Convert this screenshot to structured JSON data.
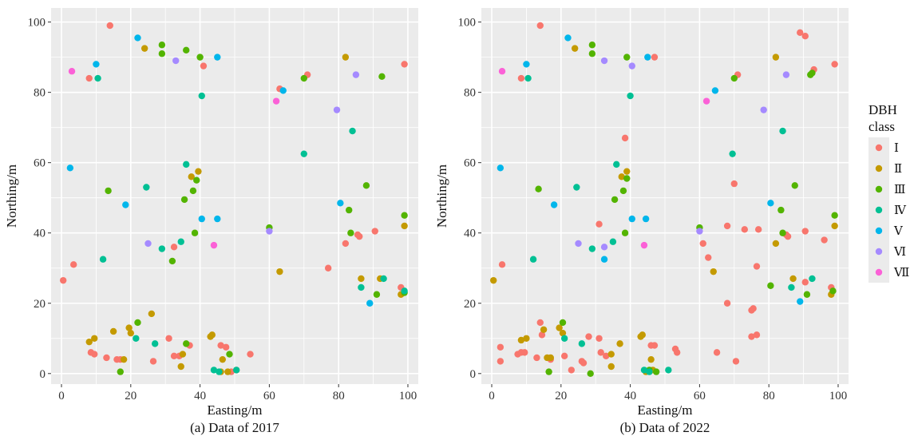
{
  "legend": {
    "title_line1": "DBH",
    "title_line2": "class",
    "placement": "right",
    "classes": [
      {
        "label": "Ⅰ",
        "color": "#F8766D"
      },
      {
        "label": "Ⅱ",
        "color": "#C49A00"
      },
      {
        "label": "Ⅲ",
        "color": "#53B400"
      },
      {
        "label": "Ⅳ",
        "color": "#00C094"
      },
      {
        "label": "Ⅴ",
        "color": "#00B6EB"
      },
      {
        "label": "Ⅵ",
        "color": "#A58AFF"
      },
      {
        "label": "Ⅶ",
        "color": "#FB61D7"
      }
    ]
  },
  "chart_data": [
    {
      "type": "scatter",
      "caption": "(a) Data of 2017",
      "xlabel": "Easting/m",
      "ylabel": "Northing/m",
      "xlim": [
        -3,
        103
      ],
      "ylim": [
        -3,
        104
      ],
      "xticks": [
        0,
        20,
        40,
        60,
        80,
        100
      ],
      "yticks": [
        0,
        20,
        40,
        60,
        80,
        100
      ],
      "grid": true,
      "series": [
        {
          "name": "Ⅰ",
          "points": [
            [
              14,
              99
            ],
            [
              8,
              84
            ],
            [
              41,
              87.5
            ],
            [
              71,
              85
            ],
            [
              99,
              88
            ],
            [
              0.5,
              26.5
            ],
            [
              3.5,
              31
            ],
            [
              8.5,
              6
            ],
            [
              9.5,
              5.5
            ],
            [
              13,
              4.5
            ],
            [
              16,
              4
            ],
            [
              17,
              4
            ],
            [
              26.5,
              3.5
            ],
            [
              31,
              10
            ],
            [
              32.5,
              5
            ],
            [
              32.5,
              36
            ],
            [
              34,
              5
            ],
            [
              37,
              8
            ],
            [
              46,
              8
            ],
            [
              47.5,
              7.5
            ],
            [
              49,
              0.5
            ],
            [
              50.5,
              1
            ],
            [
              54.5,
              5.5
            ],
            [
              63,
              81
            ],
            [
              77,
              30
            ],
            [
              82,
              37
            ],
            [
              86,
              39
            ],
            [
              85.5,
              39.5
            ],
            [
              90.5,
              40.5
            ],
            [
              98,
              24.5
            ]
          ]
        },
        {
          "name": "Ⅱ",
          "points": [
            [
              24,
              92.5
            ],
            [
              37.5,
              56
            ],
            [
              39.5,
              57.5
            ],
            [
              43,
              10.5
            ],
            [
              43.5,
              11
            ],
            [
              46,
              0.5
            ],
            [
              46.5,
              4
            ],
            [
              48,
              0.5
            ],
            [
              63,
              29
            ],
            [
              82,
              90
            ],
            [
              86.5,
              27
            ],
            [
              8,
              9
            ],
            [
              9.5,
              10
            ],
            [
              15,
              12
            ],
            [
              18,
              4
            ],
            [
              19.5,
              13
            ],
            [
              20,
              11.5
            ],
            [
              26,
              17
            ],
            [
              34.5,
              2
            ],
            [
              35,
              5.5
            ],
            [
              98,
              22.5
            ],
            [
              99,
              42
            ],
            [
              92,
              27
            ]
          ]
        },
        {
          "name": "Ⅲ",
          "points": [
            [
              29,
              93.5
            ],
            [
              29,
              91
            ],
            [
              36,
              92
            ],
            [
              40,
              90
            ],
            [
              70,
              84
            ],
            [
              92.5,
              84.5
            ],
            [
              35.5,
              49.5
            ],
            [
              38,
              52
            ],
            [
              39,
              55
            ],
            [
              38.5,
              40
            ],
            [
              32,
              32
            ],
            [
              13.5,
              52
            ],
            [
              22,
              14.5
            ],
            [
              17,
              0.5
            ],
            [
              36,
              8.5
            ],
            [
              48.5,
              5.5
            ],
            [
              60,
              41.5
            ],
            [
              83,
              46.5
            ],
            [
              83.5,
              40
            ],
            [
              88,
              53.5
            ],
            [
              91,
              22.5
            ],
            [
              99,
              45
            ],
            [
              99,
              23
            ]
          ]
        },
        {
          "name": "Ⅳ",
          "points": [
            [
              10.5,
              84
            ],
            [
              40.5,
              79
            ],
            [
              70,
              62.5
            ],
            [
              84,
              69
            ],
            [
              24.5,
              53
            ],
            [
              36,
              59.5
            ],
            [
              12,
              32.5
            ],
            [
              29,
              35.5
            ],
            [
              34.5,
              37.5
            ],
            [
              21.5,
              10
            ],
            [
              27,
              8.5
            ],
            [
              44,
              1
            ],
            [
              45.5,
              0.5
            ],
            [
              50.5,
              1
            ],
            [
              86.5,
              24.5
            ],
            [
              93,
              27
            ],
            [
              99,
              23.5
            ]
          ]
        },
        {
          "name": "Ⅴ",
          "points": [
            [
              22,
              95.5
            ],
            [
              10,
              88
            ],
            [
              45,
              90
            ],
            [
              64,
              80.5
            ],
            [
              2.5,
              58.5
            ],
            [
              18.5,
              48
            ],
            [
              40.5,
              44
            ],
            [
              45,
              44
            ],
            [
              80.5,
              48.5
            ],
            [
              89,
              20
            ]
          ]
        },
        {
          "name": "Ⅵ",
          "points": [
            [
              33,
              89
            ],
            [
              85,
              85
            ],
            [
              79.5,
              75
            ],
            [
              25,
              37
            ],
            [
              60,
              40.5
            ]
          ]
        },
        {
          "name": "Ⅶ",
          "points": [
            [
              3,
              86
            ],
            [
              62,
              77.5
            ],
            [
              44,
              36.5
            ]
          ]
        }
      ]
    },
    {
      "type": "scatter",
      "caption": "(b) Data of 2022",
      "xlabel": "Easting/m",
      "ylabel": "Northing/m",
      "xlim": [
        -3,
        103
      ],
      "ylim": [
        -3,
        104
      ],
      "xticks": [
        0,
        20,
        40,
        60,
        80,
        100
      ],
      "yticks": [
        0,
        20,
        40,
        60,
        80,
        100
      ],
      "grid": true,
      "series": [
        {
          "name": "Ⅰ",
          "points": [
            [
              14,
              99
            ],
            [
              8.5,
              84
            ],
            [
              47,
              90
            ],
            [
              71,
              85
            ],
            [
              89,
              97
            ],
            [
              90.5,
              96
            ],
            [
              93,
              86.5
            ],
            [
              99,
              88
            ],
            [
              38.5,
              67
            ],
            [
              31,
              42.5
            ],
            [
              2.5,
              7.5
            ],
            [
              2.5,
              3.5
            ],
            [
              3,
              31
            ],
            [
              7.5,
              5.5
            ],
            [
              8.5,
              6
            ],
            [
              9.5,
              6
            ],
            [
              13,
              4.5
            ],
            [
              14,
              14.5
            ],
            [
              14.5,
              11
            ],
            [
              17,
              4
            ],
            [
              21,
              5
            ],
            [
              23,
              1
            ],
            [
              26,
              3.5
            ],
            [
              26.5,
              3
            ],
            [
              28,
              10.5
            ],
            [
              31,
              10
            ],
            [
              31.5,
              6
            ],
            [
              33,
              5
            ],
            [
              47,
              8
            ],
            [
              46,
              8
            ],
            [
              53,
              7
            ],
            [
              53.5,
              6
            ],
            [
              61,
              37
            ],
            [
              62.5,
              33
            ],
            [
              65,
              6
            ],
            [
              68,
              20
            ],
            [
              68,
              42
            ],
            [
              70,
              54
            ],
            [
              70.5,
              3.5
            ],
            [
              73,
              41
            ],
            [
              75,
              18
            ],
            [
              75.5,
              18.5
            ],
            [
              75,
              10.5
            ],
            [
              76.5,
              11
            ],
            [
              76.5,
              30.5
            ],
            [
              77,
              41
            ],
            [
              85,
              39.5
            ],
            [
              85.5,
              39
            ],
            [
              90.5,
              40.5
            ],
            [
              90.5,
              26
            ],
            [
              96,
              38
            ],
            [
              98,
              24.5
            ]
          ]
        },
        {
          "name": "Ⅱ",
          "points": [
            [
              0.5,
              26.5
            ],
            [
              8.5,
              9.5
            ],
            [
              10,
              10
            ],
            [
              15,
              12.5
            ],
            [
              16,
              4.5
            ],
            [
              17,
              4.5
            ],
            [
              19.5,
              13
            ],
            [
              20.5,
              11.5
            ],
            [
              24,
              92.5
            ],
            [
              34.5,
              2
            ],
            [
              34.5,
              5.5
            ],
            [
              37,
              8.5
            ],
            [
              37.5,
              56
            ],
            [
              39,
              57.5
            ],
            [
              43,
              10.5
            ],
            [
              43.5,
              11
            ],
            [
              44.5,
              0.5
            ],
            [
              46,
              4
            ],
            [
              46.5,
              1
            ],
            [
              64,
              29
            ],
            [
              82,
              90
            ],
            [
              82,
              37
            ],
            [
              87,
              27
            ],
            [
              98,
              22.5
            ],
            [
              99,
              42
            ]
          ]
        },
        {
          "name": "Ⅲ",
          "points": [
            [
              29,
              93.5
            ],
            [
              29,
              91
            ],
            [
              39,
              90
            ],
            [
              70,
              84
            ],
            [
              92,
              85
            ],
            [
              92.5,
              85.5
            ],
            [
              35.5,
              49.5
            ],
            [
              38,
              52
            ],
            [
              39,
              55.5
            ],
            [
              38.5,
              40
            ],
            [
              13.5,
              52.5
            ],
            [
              20.5,
              14.5
            ],
            [
              16.5,
              0.5
            ],
            [
              28.5,
              0
            ],
            [
              45.5,
              1
            ],
            [
              47.5,
              0.5
            ],
            [
              60,
              41.5
            ],
            [
              80.5,
              25
            ],
            [
              83.5,
              46.5
            ],
            [
              84,
              40
            ],
            [
              87.5,
              53.5
            ],
            [
              91,
              22.5
            ],
            [
              99,
              45
            ],
            [
              98.5,
              23.5
            ]
          ]
        },
        {
          "name": "Ⅳ",
          "points": [
            [
              10.5,
              84
            ],
            [
              40,
              79
            ],
            [
              69.5,
              62.5
            ],
            [
              84,
              69
            ],
            [
              24.5,
              53
            ],
            [
              36,
              59.5
            ],
            [
              12,
              32.5
            ],
            [
              29,
              35.5
            ],
            [
              35,
              37.5
            ],
            [
              21,
              10
            ],
            [
              26,
              8.5
            ],
            [
              44,
              1
            ],
            [
              45.5,
              0.5
            ],
            [
              51,
              1
            ],
            [
              86.5,
              24.5
            ],
            [
              92.5,
              27
            ]
          ]
        },
        {
          "name": "Ⅴ",
          "points": [
            [
              22,
              95.5
            ],
            [
              10,
              88
            ],
            [
              45,
              90
            ],
            [
              64.5,
              80.5
            ],
            [
              2.5,
              58.5
            ],
            [
              18,
              48
            ],
            [
              40.5,
              44
            ],
            [
              44.5,
              44
            ],
            [
              32.5,
              32.5
            ],
            [
              80.5,
              48.5
            ],
            [
              89,
              20.5
            ]
          ]
        },
        {
          "name": "Ⅵ",
          "points": [
            [
              32.5,
              89
            ],
            [
              40.5,
              87.5
            ],
            [
              85,
              85
            ],
            [
              78.5,
              75
            ],
            [
              25,
              37
            ],
            [
              32.5,
              36
            ],
            [
              60,
              40.5
            ]
          ]
        },
        {
          "name": "Ⅶ",
          "points": [
            [
              3,
              86
            ],
            [
              62,
              77.5
            ],
            [
              44,
              36.5
            ]
          ]
        }
      ]
    }
  ]
}
